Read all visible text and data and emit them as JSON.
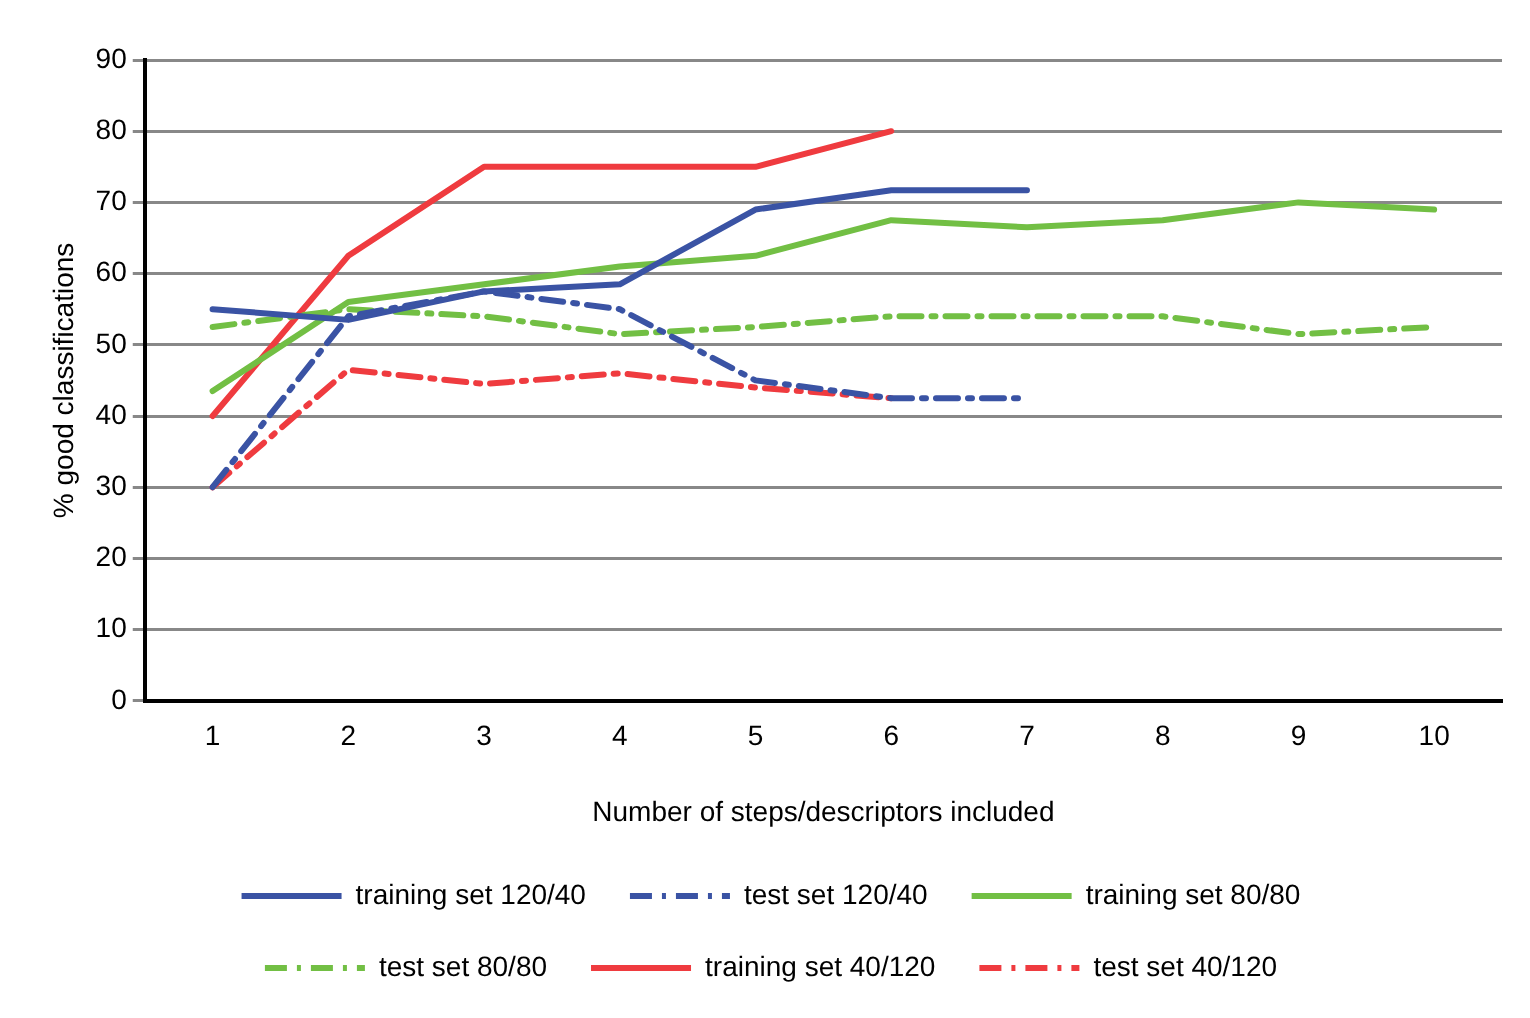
{
  "chart_data": {
    "type": "line",
    "xlabel": "Number of steps/descriptors included",
    "ylabel": "% good classifications",
    "categories": [
      "1",
      "2",
      "3",
      "4",
      "5",
      "6",
      "7",
      "8",
      "9",
      "10"
    ],
    "ylim": [
      0,
      90
    ],
    "yticks": [
      0,
      10,
      20,
      30,
      40,
      50,
      60,
      70,
      80,
      90
    ],
    "grid": "y",
    "legend": "bottom",
    "marker": "none",
    "series": [
      {
        "name": "training set 120/40",
        "color": "#3a53a4",
        "line_style": "solid",
        "values": [
          55,
          53.5,
          57.5,
          58.5,
          69,
          71.7,
          71.7,
          null,
          null,
          null
        ]
      },
      {
        "name": "test set 120/40",
        "color": "#3a53a4",
        "line_style": "dashed",
        "values": [
          30,
          54,
          57.5,
          55,
          45,
          42.5,
          42.5,
          null,
          null,
          null
        ]
      },
      {
        "name": "training set 80/80",
        "color": "#72bf44",
        "line_style": "solid",
        "values": [
          43.5,
          56,
          58.5,
          61,
          62.5,
          67.5,
          66.5,
          67.5,
          70,
          69
        ]
      },
      {
        "name": "test set 80/80",
        "color": "#72bf44",
        "line_style": "dashed",
        "values": [
          52.5,
          55,
          54,
          51.5,
          52.5,
          54,
          54,
          54,
          51.5,
          52.5
        ]
      },
      {
        "name": "training set 40/120",
        "color": "#ef3b3f",
        "line_style": "solid",
        "values": [
          40,
          62.5,
          75,
          75,
          75,
          80,
          null,
          null,
          null,
          null
        ]
      },
      {
        "name": "test set 40/120",
        "color": "#ef3b3f",
        "line_style": "dashed",
        "values": [
          30,
          46.5,
          44.5,
          46,
          44,
          42.5,
          null,
          null,
          null,
          null
        ]
      }
    ]
  }
}
